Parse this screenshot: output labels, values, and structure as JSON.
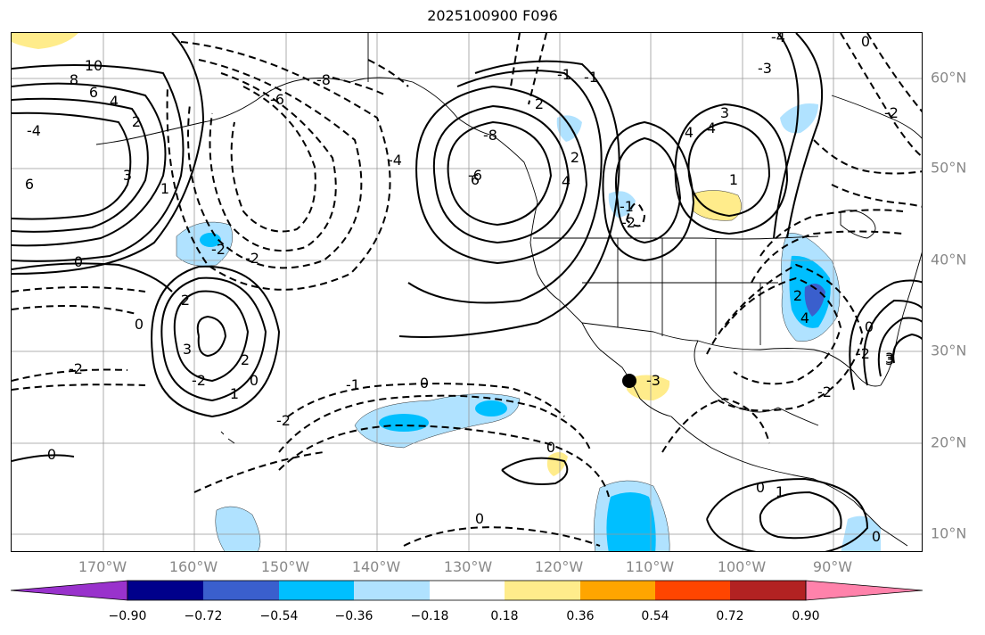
{
  "title": "2025100900 F096",
  "lon_labels": [
    "170°W",
    "160°W",
    "150°W",
    "140°W",
    "130°W",
    "120°W",
    "110°W",
    "100°W",
    "90°W"
  ],
  "lat_labels": [
    "60°N",
    "50°N",
    "40°N",
    "30°N",
    "20°N",
    "10°N"
  ],
  "colorbar": {
    "colors": [
      "#9932cc",
      "#00008b",
      "#3a5fcd",
      "#00bfff",
      "#b0e2ff",
      "#ffffff",
      "#ffec8b",
      "#ffa500",
      "#ff4500",
      "#b22222",
      "#ff82ab"
    ],
    "tick_labels": [
      "−0.90",
      "−0.72",
      "−0.54",
      "−0.36",
      "−0.18",
      "0.18",
      "0.36",
      "0.54",
      "0.72",
      "0.90"
    ]
  },
  "colors": {
    "grid": "#999999",
    "coast": "#000000",
    "contour": "#000000",
    "axis_label": "#888888"
  },
  "contour_labels": [
    {
      "text": "10"
    },
    {
      "text": "8"
    },
    {
      "text": "6"
    },
    {
      "text": "4"
    },
    {
      "text": "2"
    },
    {
      "text": "-4"
    },
    {
      "text": "6"
    },
    {
      "text": "3"
    },
    {
      "text": "1"
    },
    {
      "text": "0"
    },
    {
      "text": "-6"
    },
    {
      "text": "-8"
    },
    {
      "text": "-4"
    },
    {
      "text": "-2"
    },
    {
      "text": "-2"
    },
    {
      "text": "0"
    },
    {
      "text": "2"
    },
    {
      "text": "3"
    },
    {
      "text": "2"
    },
    {
      "text": "1"
    },
    {
      "text": "0"
    },
    {
      "text": "-2"
    },
    {
      "text": "-2"
    },
    {
      "text": "0"
    },
    {
      "text": "-1"
    },
    {
      "text": "0"
    },
    {
      "text": "-2"
    },
    {
      "text": "-6"
    },
    {
      "text": "-8"
    },
    {
      "text": "6"
    },
    {
      "text": "4"
    },
    {
      "text": "2"
    },
    {
      "text": "-1"
    },
    {
      "text": "-2"
    },
    {
      "text": "3"
    },
    {
      "text": "4"
    },
    {
      "text": "4"
    },
    {
      "text": "2"
    },
    {
      "text": "-1"
    },
    {
      "text": "-3"
    },
    {
      "text": "-4"
    },
    {
      "text": "-2"
    },
    {
      "text": "0"
    },
    {
      "text": "0"
    },
    {
      "text": "-2"
    },
    {
      "text": "2"
    },
    {
      "text": "4"
    },
    {
      "text": "3"
    },
    {
      "text": "0"
    },
    {
      "text": "-2"
    },
    {
      "text": "3"
    },
    {
      "text": "0"
    },
    {
      "text": "1"
    },
    {
      "text": "0"
    },
    {
      "text": "0"
    },
    {
      "text": "-3"
    },
    {
      "text": "-1"
    },
    {
      "text": "1"
    }
  ]
}
